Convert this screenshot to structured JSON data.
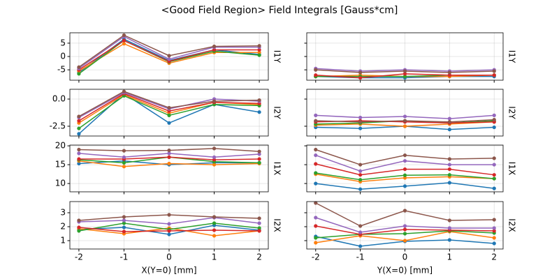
{
  "title": "<Good Field Region> Field Integrals [Gauss*cm]",
  "chart_data": [
    {
      "type": "line",
      "ylabel": "I1Y",
      "x": [
        -2,
        -1,
        0,
        1,
        2
      ],
      "xlim": [
        -2.2,
        2.2
      ],
      "xticks": [
        -2,
        -1,
        0,
        1,
        2
      ],
      "xtick_labels": false,
      "ylim": [
        -8.9,
        8.9
      ],
      "yticks": [
        -5,
        0,
        5
      ],
      "ytick_labels": true,
      "grid": true,
      "series": [
        {
          "color": "#1f77b4",
          "values": [
            -6,
            6.5,
            -1.5,
            2.5,
            0.8
          ]
        },
        {
          "color": "#ff7f0e",
          "values": [
            -5.5,
            4.8,
            -2.5,
            1.5,
            1.5
          ]
        },
        {
          "color": "#2ca02c",
          "values": [
            -6.5,
            6,
            -2,
            2,
            0.5
          ]
        },
        {
          "color": "#d62728",
          "values": [
            -5,
            6,
            -1.8,
            2.5,
            2.5
          ]
        },
        {
          "color": "#9467bd",
          "values": [
            -4.5,
            7.5,
            -1,
            3.5,
            3.5
          ]
        },
        {
          "color": "#8c564b",
          "values": [
            -4,
            8,
            0.3,
            3.8,
            4
          ]
        }
      ]
    },
    {
      "type": "line",
      "ylabel": "I1Y",
      "x": [
        -2,
        -1,
        0,
        1,
        2
      ],
      "xlim": [
        -2.2,
        2.2
      ],
      "xticks": [
        -2,
        -1,
        0,
        1,
        2
      ],
      "xtick_labels": false,
      "ylim": [
        -8.9,
        8.9
      ],
      "yticks": [
        -5,
        0,
        5
      ],
      "ytick_labels": false,
      "grid": true,
      "series": [
        {
          "color": "#1f77b4",
          "values": [
            -7.5,
            -8,
            -8,
            -7.5,
            -7.5
          ]
        },
        {
          "color": "#ff7f0e",
          "values": [
            -7.5,
            -7,
            -7.5,
            -7.5,
            -7
          ]
        },
        {
          "color": "#2ca02c",
          "values": [
            -7.5,
            -7.5,
            -7.5,
            -7,
            -7
          ]
        },
        {
          "color": "#d62728",
          "values": [
            -7,
            -8,
            -6.5,
            -7,
            -7
          ]
        },
        {
          "color": "#9467bd",
          "values": [
            -4.5,
            -5.5,
            -5,
            -5.5,
            -5
          ]
        },
        {
          "color": "#8c564b",
          "values": [
            -5,
            -6,
            -5.5,
            -6,
            -5.5
          ]
        }
      ]
    },
    {
      "type": "line",
      "ylabel": "I2Y",
      "x": [
        -2,
        -1,
        0,
        1,
        2
      ],
      "xlim": [
        -2.2,
        2.2
      ],
      "xticks": [
        -2,
        -1,
        0,
        1,
        2
      ],
      "xtick_labels": false,
      "ylim": [
        -3.4,
        0.9
      ],
      "yticks": [
        -2.5,
        {
          "value": 0,
          "label": "0.0"
        }
      ],
      "ytick_labels": true,
      "grid": true,
      "series": [
        {
          "color": "#1f77b4",
          "values": [
            -3.2,
            0.5,
            -2.2,
            -0.5,
            -1.2
          ]
        },
        {
          "color": "#ff7f0e",
          "values": [
            -2.2,
            0.4,
            -1.3,
            -0.3,
            -0.5
          ]
        },
        {
          "color": "#2ca02c",
          "values": [
            -2.7,
            0.3,
            -1.5,
            -0.5,
            -0.6
          ]
        },
        {
          "color": "#d62728",
          "values": [
            -2,
            0.5,
            -1.1,
            -0.3,
            -0.4
          ]
        },
        {
          "color": "#9467bd",
          "values": [
            -1.7,
            0.6,
            -0.9,
            0,
            -0.2
          ]
        },
        {
          "color": "#8c564b",
          "values": [
            -1.6,
            0.7,
            -0.8,
            -0.2,
            -0.1
          ]
        }
      ]
    },
    {
      "type": "line",
      "ylabel": "I2Y",
      "x": [
        -2,
        -1,
        0,
        1,
        2
      ],
      "xlim": [
        -2.2,
        2.2
      ],
      "xticks": [
        -2,
        -1,
        0,
        1,
        2
      ],
      "xtick_labels": false,
      "ylim": [
        -3.4,
        0.9
      ],
      "yticks": [
        -2.5,
        0
      ],
      "ytick_labels": false,
      "grid": true,
      "series": [
        {
          "color": "#1f77b4",
          "values": [
            -2.6,
            -2.7,
            -2.5,
            -2.8,
            -2.6
          ]
        },
        {
          "color": "#ff7f0e",
          "values": [
            -2.4,
            -2.3,
            -2.5,
            -2.3,
            -2.1
          ]
        },
        {
          "color": "#2ca02c",
          "values": [
            -2.3,
            -2.2,
            -2.0,
            -2.2,
            -2.0
          ]
        },
        {
          "color": "#d62728",
          "values": [
            -2.1,
            -2.0,
            -2.1,
            -2.2,
            -2.1
          ]
        },
        {
          "color": "#9467bd",
          "values": [
            -1.5,
            -1.7,
            -1.6,
            -1.8,
            -1.5
          ]
        },
        {
          "color": "#8c564b",
          "values": [
            -2.0,
            -2.1,
            -2.0,
            -2.1,
            -1.9
          ]
        }
      ]
    },
    {
      "type": "line",
      "ylabel": "I1X",
      "x": [
        -2,
        -1,
        0,
        1,
        2
      ],
      "xlim": [
        -2.2,
        2.2
      ],
      "xticks": [
        -2,
        -1,
        0,
        1,
        2
      ],
      "xtick_labels": false,
      "ylim": [
        7.8,
        20.2
      ],
      "yticks": [
        10,
        15,
        20
      ],
      "ytick_labels": true,
      "grid": true,
      "series": [
        {
          "color": "#1f77b4",
          "values": [
            15.3,
            16,
            15,
            15.5,
            15.5
          ]
        },
        {
          "color": "#ff7f0e",
          "values": [
            16,
            14.5,
            15.3,
            15,
            15.3
          ]
        },
        {
          "color": "#2ca02c",
          "values": [
            16.3,
            15.5,
            17,
            15.8,
            15.5
          ]
        },
        {
          "color": "#d62728",
          "values": [
            16.5,
            16.5,
            17,
            16.3,
            16.5
          ]
        },
        {
          "color": "#9467bd",
          "values": [
            18,
            17,
            18,
            17,
            17.8
          ]
        },
        {
          "color": "#8c564b",
          "values": [
            19,
            18.7,
            18.8,
            19.3,
            18.5
          ]
        }
      ]
    },
    {
      "type": "line",
      "ylabel": "I1X",
      "x": [
        -2,
        -1,
        0,
        1,
        2
      ],
      "xlim": [
        -2.2,
        2.2
      ],
      "xticks": [
        -2,
        -1,
        0,
        1,
        2
      ],
      "xtick_labels": false,
      "ylim": [
        7.8,
        20.2
      ],
      "yticks": [
        10,
        15,
        20
      ],
      "ytick_labels": false,
      "grid": true,
      "series": [
        {
          "color": "#1f77b4",
          "values": [
            10,
            8.5,
            9.3,
            10.2,
            8.7
          ]
        },
        {
          "color": "#ff7f0e",
          "values": [
            12.5,
            10.5,
            11.5,
            11.8,
            11.3
          ]
        },
        {
          "color": "#2ca02c",
          "values": [
            12.8,
            11,
            12.2,
            12.3,
            11.3
          ]
        },
        {
          "color": "#d62728",
          "values": [
            15.2,
            12.3,
            13.8,
            13.8,
            12.3
          ]
        },
        {
          "color": "#9467bd",
          "values": [
            17.5,
            13.3,
            16,
            15,
            15
          ]
        },
        {
          "color": "#8c564b",
          "values": [
            19,
            15,
            17.5,
            16.5,
            16.7
          ]
        }
      ]
    },
    {
      "type": "line",
      "ylabel": "I2X",
      "xlabel": "X(Y=0) [mm]",
      "x": [
        -2,
        -1,
        0,
        1,
        2
      ],
      "xlim": [
        -2.2,
        2.2
      ],
      "xticks": [
        -2,
        -1,
        0,
        1,
        2
      ],
      "xtick_labels": true,
      "ylim": [
        0.4,
        3.8
      ],
      "yticks": [
        1,
        2,
        3
      ],
      "ytick_labels": true,
      "grid": true,
      "series": [
        {
          "color": "#1f77b4",
          "values": [
            1.8,
            1.95,
            1.45,
            2.1,
            1.75
          ]
        },
        {
          "color": "#ff7f0e",
          "values": [
            1.85,
            1.5,
            1.9,
            1.35,
            1.7
          ]
        },
        {
          "color": "#2ca02c",
          "values": [
            1.7,
            2.25,
            1.8,
            2.25,
            1.9
          ]
        },
        {
          "color": "#d62728",
          "values": [
            1.95,
            1.65,
            1.7,
            1.75,
            1.7
          ]
        },
        {
          "color": "#9467bd",
          "values": [
            2.35,
            2.45,
            2.2,
            2.65,
            2.25
          ]
        },
        {
          "color": "#8c564b",
          "values": [
            2.45,
            2.7,
            2.85,
            2.7,
            2.6
          ]
        }
      ]
    },
    {
      "type": "line",
      "ylabel": "I2X",
      "xlabel": "Y(X=0) [mm]",
      "x": [
        -2,
        -1,
        0,
        1,
        2
      ],
      "xlim": [
        -2.2,
        2.2
      ],
      "xticks": [
        -2,
        -1,
        0,
        1,
        2
      ],
      "xtick_labels": true,
      "ylim": [
        0.4,
        3.8
      ],
      "yticks": [
        1,
        2,
        3
      ],
      "ytick_labels": false,
      "grid": true,
      "series": [
        {
          "color": "#1f77b4",
          "values": [
            1.3,
            0.6,
            0.95,
            1.05,
            0.8
          ]
        },
        {
          "color": "#ff7f0e",
          "values": [
            0.85,
            1.35,
            1.0,
            1.65,
            1.2
          ]
        },
        {
          "color": "#2ca02c",
          "values": [
            1.2,
            1.45,
            1.5,
            1.7,
            1.55
          ]
        },
        {
          "color": "#d62728",
          "values": [
            2.05,
            1.45,
            1.8,
            1.75,
            1.7
          ]
        },
        {
          "color": "#9467bd",
          "values": [
            2.65,
            1.6,
            2.05,
            1.9,
            1.9
          ]
        },
        {
          "color": "#8c564b",
          "values": [
            3.7,
            2.05,
            3.15,
            2.45,
            2.5
          ]
        }
      ]
    }
  ]
}
